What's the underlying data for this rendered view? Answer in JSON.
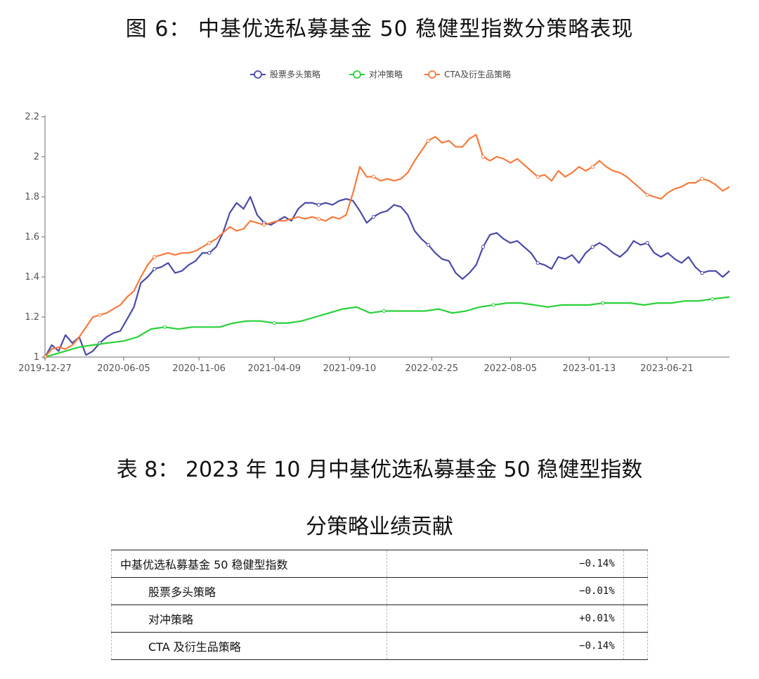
{
  "figure_title": "图 6： 中基优选私募基金 50 稳健型指数分策略表现",
  "table_title_line1": "表 8： 2023 年 10 月中基优选私募基金 50 稳健型指数",
  "table_title_line2": "分策略业绩贡献",
  "table": {
    "rows": [
      {
        "name": "中基优选私募基金 50 稳健型指数",
        "value": "−0.14%"
      },
      {
        "name": "股票多头策略",
        "value": "−0.01%"
      },
      {
        "name": "对冲策略",
        "value": "+0.01%"
      },
      {
        "name": "CTA 及衍生品策略",
        "value": "−0.14%"
      }
    ]
  },
  "chart_data": {
    "type": "line",
    "x_ticks": [
      "2019-12-27",
      "2020-06-05",
      "2020-11-06",
      "2021-04-09",
      "2021-09-10",
      "2022-02-25",
      "2022-08-05",
      "2023-01-13",
      "2023-06-21"
    ],
    "x_range": [
      "2019-12-27",
      "2023-10-27"
    ],
    "y_ticks": [
      "1",
      "1.2",
      "1.4",
      "1.6",
      "1.8",
      "2",
      "2.2"
    ],
    "ylim": [
      1,
      2.2
    ],
    "legend_position": "top-center",
    "series": [
      {
        "name": "股票多头策略",
        "color": "#4b4aa6",
        "points": [
          [
            "2019-12-27",
            1.0
          ],
          [
            "2020-01-10",
            1.06
          ],
          [
            "2020-01-24",
            1.03
          ],
          [
            "2020-02-07",
            1.11
          ],
          [
            "2020-02-21",
            1.07
          ],
          [
            "2020-03-06",
            1.1
          ],
          [
            "2020-03-20",
            1.01
          ],
          [
            "2020-04-03",
            1.03
          ],
          [
            "2020-04-17",
            1.07
          ],
          [
            "2020-05-01",
            1.1
          ],
          [
            "2020-05-15",
            1.12
          ],
          [
            "2020-05-29",
            1.13
          ],
          [
            "2020-06-12",
            1.19
          ],
          [
            "2020-06-26",
            1.25
          ],
          [
            "2020-07-10",
            1.37
          ],
          [
            "2020-07-24",
            1.4
          ],
          [
            "2020-08-07",
            1.44
          ],
          [
            "2020-08-21",
            1.45
          ],
          [
            "2020-09-04",
            1.47
          ],
          [
            "2020-09-18",
            1.42
          ],
          [
            "2020-10-02",
            1.43
          ],
          [
            "2020-10-16",
            1.46
          ],
          [
            "2020-10-30",
            1.48
          ],
          [
            "2020-11-13",
            1.52
          ],
          [
            "2020-11-27",
            1.52
          ],
          [
            "2020-12-11",
            1.55
          ],
          [
            "2020-12-25",
            1.62
          ],
          [
            "2021-01-08",
            1.72
          ],
          [
            "2021-01-22",
            1.77
          ],
          [
            "2021-02-05",
            1.74
          ],
          [
            "2021-02-19",
            1.8
          ],
          [
            "2021-03-05",
            1.71
          ],
          [
            "2021-03-19",
            1.67
          ],
          [
            "2021-04-02",
            1.66
          ],
          [
            "2021-04-16",
            1.68
          ],
          [
            "2021-04-30",
            1.7
          ],
          [
            "2021-05-14",
            1.68
          ],
          [
            "2021-05-28",
            1.74
          ],
          [
            "2021-06-11",
            1.77
          ],
          [
            "2021-06-25",
            1.77
          ],
          [
            "2021-07-09",
            1.76
          ],
          [
            "2021-07-23",
            1.77
          ],
          [
            "2021-08-06",
            1.76
          ],
          [
            "2021-08-20",
            1.78
          ],
          [
            "2021-09-03",
            1.79
          ],
          [
            "2021-09-17",
            1.78
          ],
          [
            "2021-10-01",
            1.73
          ],
          [
            "2021-10-15",
            1.67
          ],
          [
            "2021-10-29",
            1.7
          ],
          [
            "2021-11-12",
            1.72
          ],
          [
            "2021-11-26",
            1.73
          ],
          [
            "2021-12-10",
            1.76
          ],
          [
            "2021-12-24",
            1.75
          ],
          [
            "2022-01-07",
            1.71
          ],
          [
            "2022-01-21",
            1.63
          ],
          [
            "2022-02-04",
            1.59
          ],
          [
            "2022-02-18",
            1.56
          ],
          [
            "2022-03-04",
            1.52
          ],
          [
            "2022-03-18",
            1.49
          ],
          [
            "2022-04-01",
            1.48
          ],
          [
            "2022-04-15",
            1.42
          ],
          [
            "2022-04-29",
            1.39
          ],
          [
            "2022-05-13",
            1.42
          ],
          [
            "2022-05-27",
            1.46
          ],
          [
            "2022-06-10",
            1.55
          ],
          [
            "2022-06-24",
            1.61
          ],
          [
            "2022-07-08",
            1.62
          ],
          [
            "2022-07-22",
            1.59
          ],
          [
            "2022-08-05",
            1.57
          ],
          [
            "2022-08-19",
            1.58
          ],
          [
            "2022-09-02",
            1.55
          ],
          [
            "2022-09-16",
            1.52
          ],
          [
            "2022-09-30",
            1.47
          ],
          [
            "2022-10-14",
            1.46
          ],
          [
            "2022-10-28",
            1.44
          ],
          [
            "2022-11-11",
            1.5
          ],
          [
            "2022-11-25",
            1.49
          ],
          [
            "2022-12-09",
            1.51
          ],
          [
            "2022-12-23",
            1.47
          ],
          [
            "2023-01-06",
            1.52
          ],
          [
            "2023-01-20",
            1.55
          ],
          [
            "2023-02-03",
            1.57
          ],
          [
            "2023-02-17",
            1.55
          ],
          [
            "2023-03-03",
            1.52
          ],
          [
            "2023-03-17",
            1.5
          ],
          [
            "2023-03-31",
            1.53
          ],
          [
            "2023-04-14",
            1.58
          ],
          [
            "2023-04-28",
            1.56
          ],
          [
            "2023-05-12",
            1.57
          ],
          [
            "2023-05-26",
            1.52
          ],
          [
            "2023-06-09",
            1.5
          ],
          [
            "2023-06-23",
            1.52
          ],
          [
            "2023-07-07",
            1.49
          ],
          [
            "2023-07-21",
            1.47
          ],
          [
            "2023-08-04",
            1.5
          ],
          [
            "2023-08-18",
            1.45
          ],
          [
            "2023-09-01",
            1.42
          ],
          [
            "2023-09-15",
            1.43
          ],
          [
            "2023-09-29",
            1.43
          ],
          [
            "2023-10-13",
            1.4
          ],
          [
            "2023-10-27",
            1.43
          ]
        ]
      },
      {
        "name": "对冲策略",
        "color": "#2ad13a",
        "points": [
          [
            "2019-12-27",
            1.0
          ],
          [
            "2020-02-07",
            1.03
          ],
          [
            "2020-03-06",
            1.05
          ],
          [
            "2020-04-03",
            1.06
          ],
          [
            "2020-05-01",
            1.07
          ],
          [
            "2020-06-05",
            1.08
          ],
          [
            "2020-07-03",
            1.1
          ],
          [
            "2020-07-31",
            1.14
          ],
          [
            "2020-08-28",
            1.15
          ],
          [
            "2020-09-25",
            1.14
          ],
          [
            "2020-10-23",
            1.15
          ],
          [
            "2020-11-20",
            1.15
          ],
          [
            "2020-12-18",
            1.15
          ],
          [
            "2021-01-15",
            1.17
          ],
          [
            "2021-02-12",
            1.18
          ],
          [
            "2021-03-12",
            1.18
          ],
          [
            "2021-04-09",
            1.17
          ],
          [
            "2021-05-07",
            1.17
          ],
          [
            "2021-06-04",
            1.18
          ],
          [
            "2021-07-02",
            1.2
          ],
          [
            "2021-07-30",
            1.22
          ],
          [
            "2021-08-27",
            1.24
          ],
          [
            "2021-09-24",
            1.25
          ],
          [
            "2021-10-22",
            1.22
          ],
          [
            "2021-11-19",
            1.23
          ],
          [
            "2021-12-17",
            1.23
          ],
          [
            "2022-01-14",
            1.23
          ],
          [
            "2022-02-11",
            1.23
          ],
          [
            "2022-03-11",
            1.24
          ],
          [
            "2022-04-08",
            1.22
          ],
          [
            "2022-05-06",
            1.23
          ],
          [
            "2022-06-03",
            1.25
          ],
          [
            "2022-07-01",
            1.26
          ],
          [
            "2022-07-29",
            1.27
          ],
          [
            "2022-08-26",
            1.27
          ],
          [
            "2022-09-23",
            1.26
          ],
          [
            "2022-10-21",
            1.25
          ],
          [
            "2022-11-18",
            1.26
          ],
          [
            "2022-12-16",
            1.26
          ],
          [
            "2023-01-13",
            1.26
          ],
          [
            "2023-02-10",
            1.27
          ],
          [
            "2023-03-10",
            1.27
          ],
          [
            "2023-04-07",
            1.27
          ],
          [
            "2023-05-05",
            1.26
          ],
          [
            "2023-06-02",
            1.27
          ],
          [
            "2023-06-30",
            1.27
          ],
          [
            "2023-07-28",
            1.28
          ],
          [
            "2023-08-25",
            1.28
          ],
          [
            "2023-09-22",
            1.29
          ],
          [
            "2023-10-27",
            1.3
          ]
        ]
      },
      {
        "name": "CTA及衍生品策略",
        "color": "#f57b3e",
        "points": [
          [
            "2019-12-27",
            1.0
          ],
          [
            "2020-01-10",
            1.04
          ],
          [
            "2020-01-24",
            1.05
          ],
          [
            "2020-02-07",
            1.04
          ],
          [
            "2020-02-21",
            1.06
          ],
          [
            "2020-03-06",
            1.1
          ],
          [
            "2020-03-20",
            1.15
          ],
          [
            "2020-04-03",
            1.2
          ],
          [
            "2020-04-17",
            1.21
          ],
          [
            "2020-05-01",
            1.22
          ],
          [
            "2020-05-15",
            1.24
          ],
          [
            "2020-05-29",
            1.26
          ],
          [
            "2020-06-12",
            1.3
          ],
          [
            "2020-06-26",
            1.33
          ],
          [
            "2020-07-10",
            1.4
          ],
          [
            "2020-07-24",
            1.46
          ],
          [
            "2020-08-07",
            1.5
          ],
          [
            "2020-08-21",
            1.51
          ],
          [
            "2020-09-04",
            1.52
          ],
          [
            "2020-09-18",
            1.51
          ],
          [
            "2020-10-02",
            1.52
          ],
          [
            "2020-10-16",
            1.52
          ],
          [
            "2020-10-30",
            1.53
          ],
          [
            "2020-11-13",
            1.55
          ],
          [
            "2020-11-27",
            1.57
          ],
          [
            "2020-12-11",
            1.59
          ],
          [
            "2020-12-25",
            1.62
          ],
          [
            "2021-01-08",
            1.65
          ],
          [
            "2021-01-22",
            1.63
          ],
          [
            "2021-02-05",
            1.64
          ],
          [
            "2021-02-19",
            1.68
          ],
          [
            "2021-03-05",
            1.67
          ],
          [
            "2021-03-19",
            1.66
          ],
          [
            "2021-04-02",
            1.67
          ],
          [
            "2021-04-16",
            1.68
          ],
          [
            "2021-04-30",
            1.68
          ],
          [
            "2021-05-14",
            1.69
          ],
          [
            "2021-05-28",
            1.7
          ],
          [
            "2021-06-11",
            1.69
          ],
          [
            "2021-06-25",
            1.7
          ],
          [
            "2021-07-09",
            1.69
          ],
          [
            "2021-07-23",
            1.68
          ],
          [
            "2021-08-06",
            1.7
          ],
          [
            "2021-08-20",
            1.69
          ],
          [
            "2021-09-03",
            1.71
          ],
          [
            "2021-09-17",
            1.82
          ],
          [
            "2021-10-01",
            1.95
          ],
          [
            "2021-10-15",
            1.9
          ],
          [
            "2021-10-29",
            1.9
          ],
          [
            "2021-11-12",
            1.88
          ],
          [
            "2021-11-26",
            1.89
          ],
          [
            "2021-12-10",
            1.88
          ],
          [
            "2021-12-24",
            1.89
          ],
          [
            "2022-01-07",
            1.92
          ],
          [
            "2022-01-21",
            1.98
          ],
          [
            "2022-02-04",
            2.03
          ],
          [
            "2022-02-18",
            2.08
          ],
          [
            "2022-03-04",
            2.1
          ],
          [
            "2022-03-18",
            2.07
          ],
          [
            "2022-04-01",
            2.08
          ],
          [
            "2022-04-15",
            2.05
          ],
          [
            "2022-04-29",
            2.05
          ],
          [
            "2022-05-13",
            2.09
          ],
          [
            "2022-05-27",
            2.11
          ],
          [
            "2022-06-10",
            2.0
          ],
          [
            "2022-06-24",
            1.98
          ],
          [
            "2022-07-08",
            2.0
          ],
          [
            "2022-07-22",
            1.99
          ],
          [
            "2022-08-05",
            1.97
          ],
          [
            "2022-08-19",
            1.99
          ],
          [
            "2022-09-02",
            1.96
          ],
          [
            "2022-09-16",
            1.93
          ],
          [
            "2022-09-30",
            1.9
          ],
          [
            "2022-10-14",
            1.91
          ],
          [
            "2022-10-28",
            1.88
          ],
          [
            "2022-11-11",
            1.93
          ],
          [
            "2022-11-25",
            1.9
          ],
          [
            "2022-12-09",
            1.92
          ],
          [
            "2022-12-23",
            1.95
          ],
          [
            "2023-01-06",
            1.93
          ],
          [
            "2023-01-20",
            1.95
          ],
          [
            "2023-02-03",
            1.98
          ],
          [
            "2023-02-17",
            1.95
          ],
          [
            "2023-03-03",
            1.93
          ],
          [
            "2023-03-17",
            1.92
          ],
          [
            "2023-03-31",
            1.9
          ],
          [
            "2023-04-14",
            1.87
          ],
          [
            "2023-04-28",
            1.84
          ],
          [
            "2023-05-12",
            1.81
          ],
          [
            "2023-05-26",
            1.8
          ],
          [
            "2023-06-09",
            1.79
          ],
          [
            "2023-06-23",
            1.82
          ],
          [
            "2023-07-07",
            1.84
          ],
          [
            "2023-07-21",
            1.85
          ],
          [
            "2023-08-04",
            1.87
          ],
          [
            "2023-08-18",
            1.87
          ],
          [
            "2023-09-01",
            1.89
          ],
          [
            "2023-09-15",
            1.88
          ],
          [
            "2023-09-29",
            1.86
          ],
          [
            "2023-10-13",
            1.83
          ],
          [
            "2023-10-27",
            1.85
          ]
        ]
      }
    ]
  }
}
